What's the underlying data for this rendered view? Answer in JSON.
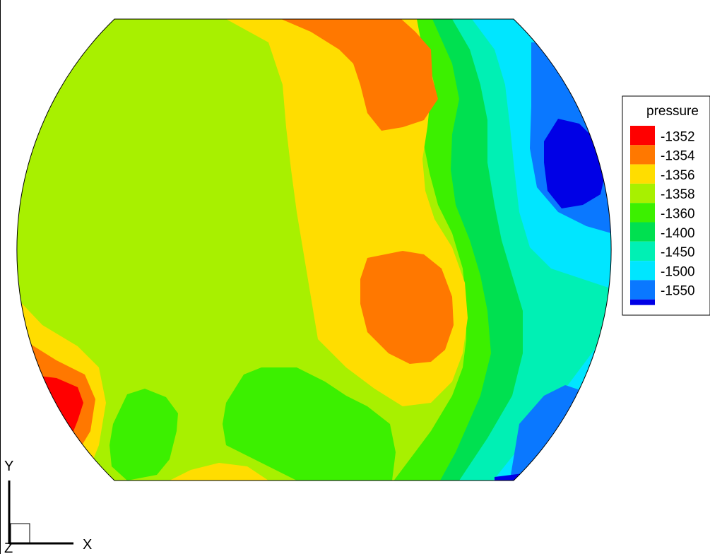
{
  "chart_data": {
    "type": "heatmap",
    "variable": "pressure",
    "legend": {
      "title": "pressure",
      "placement": "right",
      "levels": [
        {
          "label": "-1352",
          "color": "#ff0000"
        },
        {
          "label": "-1354",
          "color": "#ff7800"
        },
        {
          "label": "-1356",
          "color": "#ffdd00"
        },
        {
          "label": "-1358",
          "color": "#a8f000"
        },
        {
          "label": "-1360",
          "color": "#3cf000"
        },
        {
          "label": "-1400",
          "color": "#00e050"
        },
        {
          "label": "-1450",
          "color": "#00f0b4"
        },
        {
          "label": "-1500",
          "color": "#00e6ff"
        },
        {
          "label": "-1550",
          "color": "#0a78ff"
        }
      ],
      "bottom_color": "#0000e6"
    },
    "axes": {
      "x_label": "X",
      "y_label": "Y",
      "z_label": "Z"
    }
  }
}
